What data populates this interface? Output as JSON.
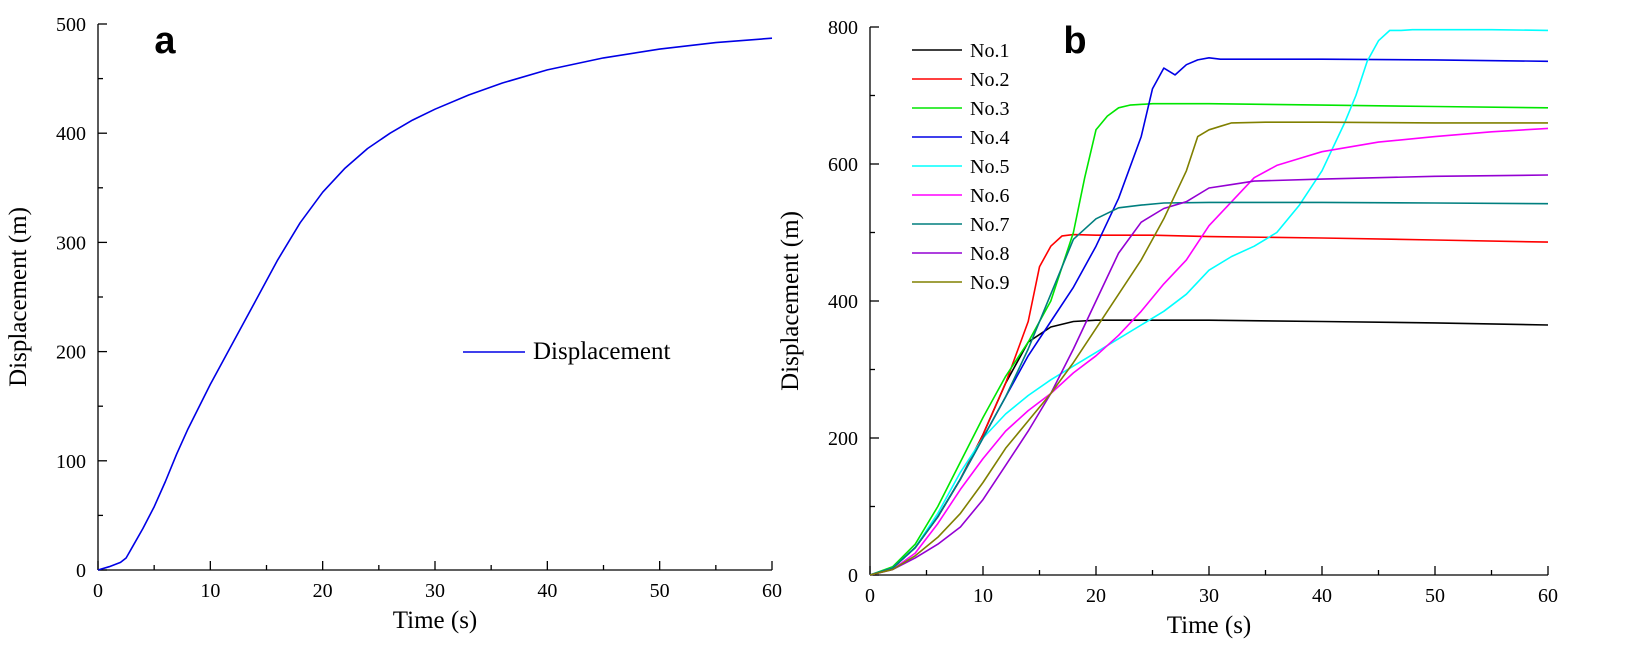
{
  "chart_data": [
    {
      "type": "line",
      "panel_label": "a",
      "xlabel": "Time (s)",
      "ylabel": "Displacement (m)",
      "xlim": [
        0,
        60
      ],
      "ylim": [
        0,
        500
      ],
      "xticks": [
        0,
        10,
        20,
        30,
        40,
        50,
        60
      ],
      "yticks": [
        0,
        100,
        200,
        300,
        400,
        500
      ],
      "legend_position": "center-right",
      "series": [
        {
          "name": "Displacement",
          "color": "#0000e6",
          "x": [
            0,
            1,
            2,
            2.5,
            3,
            4,
            5,
            6,
            7,
            8,
            10,
            12,
            14,
            16,
            18,
            20,
            22,
            24,
            26,
            28,
            30,
            33,
            36,
            40,
            45,
            50,
            55,
            60
          ],
          "y": [
            0,
            3,
            7,
            11,
            20,
            38,
            58,
            81,
            106,
            129,
            170,
            208,
            246,
            284,
            318,
            346,
            368,
            386,
            400,
            412,
            422,
            435,
            446,
            458,
            469,
            477,
            483,
            487
          ]
        }
      ]
    },
    {
      "type": "line",
      "panel_label": "b",
      "xlabel": "Time (s)",
      "ylabel": "Displacement (m)",
      "xlim": [
        0,
        60
      ],
      "ylim": [
        0,
        800
      ],
      "xticks": [
        0,
        10,
        20,
        30,
        40,
        50,
        60
      ],
      "yticks": [
        0,
        200,
        400,
        600,
        800
      ],
      "legend_position": "top-left",
      "series": [
        {
          "name": "No.1",
          "color": "#000000",
          "x": [
            0,
            2,
            4,
            6,
            8,
            10,
            12,
            14,
            16,
            18,
            20,
            25,
            30,
            40,
            50,
            60
          ],
          "y": [
            0,
            10,
            40,
            85,
            140,
            205,
            280,
            340,
            362,
            370,
            372,
            372,
            372,
            370,
            368,
            365
          ]
        },
        {
          "name": "No.2",
          "color": "#ff0000",
          "x": [
            0,
            2,
            4,
            6,
            8,
            10,
            12,
            14,
            15,
            16,
            17,
            18,
            20,
            25,
            30,
            40,
            50,
            60
          ],
          "y": [
            0,
            10,
            40,
            85,
            140,
            205,
            280,
            370,
            450,
            480,
            495,
            497,
            496,
            496,
            494,
            492,
            489,
            486
          ]
        },
        {
          "name": "No.3",
          "color": "#00e600",
          "x": [
            0,
            2,
            4,
            6,
            8,
            10,
            12,
            14,
            16,
            18,
            19,
            20,
            21,
            22,
            23,
            25,
            30,
            40,
            50,
            60
          ],
          "y": [
            0,
            12,
            45,
            100,
            165,
            230,
            290,
            340,
            400,
            500,
            580,
            650,
            670,
            682,
            686,
            688,
            688,
            686,
            684,
            682
          ]
        },
        {
          "name": "No.4",
          "color": "#0000e6",
          "x": [
            0,
            2,
            4,
            6,
            8,
            10,
            12,
            14,
            16,
            18,
            20,
            22,
            24,
            25,
            26,
            27,
            28,
            29,
            30,
            31,
            35,
            40,
            50,
            60
          ],
          "y": [
            0,
            10,
            40,
            85,
            140,
            200,
            260,
            320,
            370,
            420,
            480,
            550,
            640,
            710,
            740,
            730,
            745,
            752,
            755,
            753,
            753,
            753,
            752,
            750
          ]
        },
        {
          "name": "No.5",
          "color": "#00ffff",
          "x": [
            0,
            2,
            4,
            6,
            8,
            10,
            12,
            14,
            16,
            18,
            20,
            22,
            24,
            26,
            28,
            30,
            32,
            34,
            36,
            38,
            40,
            42,
            43,
            44,
            45,
            46,
            47,
            48,
            50,
            55,
            60
          ],
          "y": [
            0,
            10,
            40,
            90,
            150,
            200,
            235,
            262,
            285,
            305,
            325,
            345,
            365,
            385,
            410,
            445,
            465,
            480,
            500,
            540,
            590,
            660,
            700,
            750,
            780,
            795,
            795,
            796,
            796,
            796,
            795
          ]
        },
        {
          "name": "No.6",
          "color": "#ff00ff",
          "x": [
            0,
            2,
            4,
            6,
            8,
            10,
            12,
            14,
            16,
            18,
            20,
            22,
            24,
            26,
            28,
            30,
            32,
            34,
            36,
            38,
            40,
            45,
            50,
            55,
            60
          ],
          "y": [
            0,
            8,
            32,
            75,
            125,
            170,
            210,
            240,
            265,
            295,
            320,
            350,
            385,
            425,
            460,
            510,
            545,
            580,
            598,
            608,
            618,
            632,
            640,
            647,
            652
          ]
        },
        {
          "name": "No.7",
          "color": "#007f7f",
          "x": [
            0,
            2,
            4,
            6,
            8,
            10,
            12,
            14,
            16,
            18,
            20,
            22,
            24,
            26,
            30,
            40,
            50,
            60
          ],
          "y": [
            0,
            10,
            40,
            85,
            140,
            200,
            260,
            330,
            410,
            490,
            520,
            536,
            540,
            543,
            544,
            544,
            543,
            542
          ]
        },
        {
          "name": "No.8",
          "color": "#9400d3",
          "x": [
            0,
            2,
            4,
            6,
            8,
            10,
            12,
            14,
            16,
            18,
            20,
            22,
            24,
            26,
            28,
            30,
            32,
            34,
            40,
            50,
            60
          ],
          "y": [
            0,
            8,
            25,
            45,
            70,
            110,
            160,
            210,
            265,
            330,
            400,
            470,
            515,
            535,
            545,
            565,
            570,
            575,
            578,
            582,
            584
          ]
        },
        {
          "name": "No.9",
          "color": "#808000",
          "x": [
            0,
            2,
            4,
            6,
            8,
            10,
            12,
            14,
            16,
            18,
            20,
            22,
            24,
            26,
            28,
            29,
            30,
            31,
            32,
            35,
            40,
            50,
            60
          ],
          "y": [
            0,
            8,
            28,
            55,
            90,
            135,
            185,
            225,
            265,
            310,
            360,
            410,
            460,
            520,
            590,
            640,
            650,
            655,
            660,
            661,
            661,
            660,
            660
          ]
        }
      ]
    }
  ]
}
